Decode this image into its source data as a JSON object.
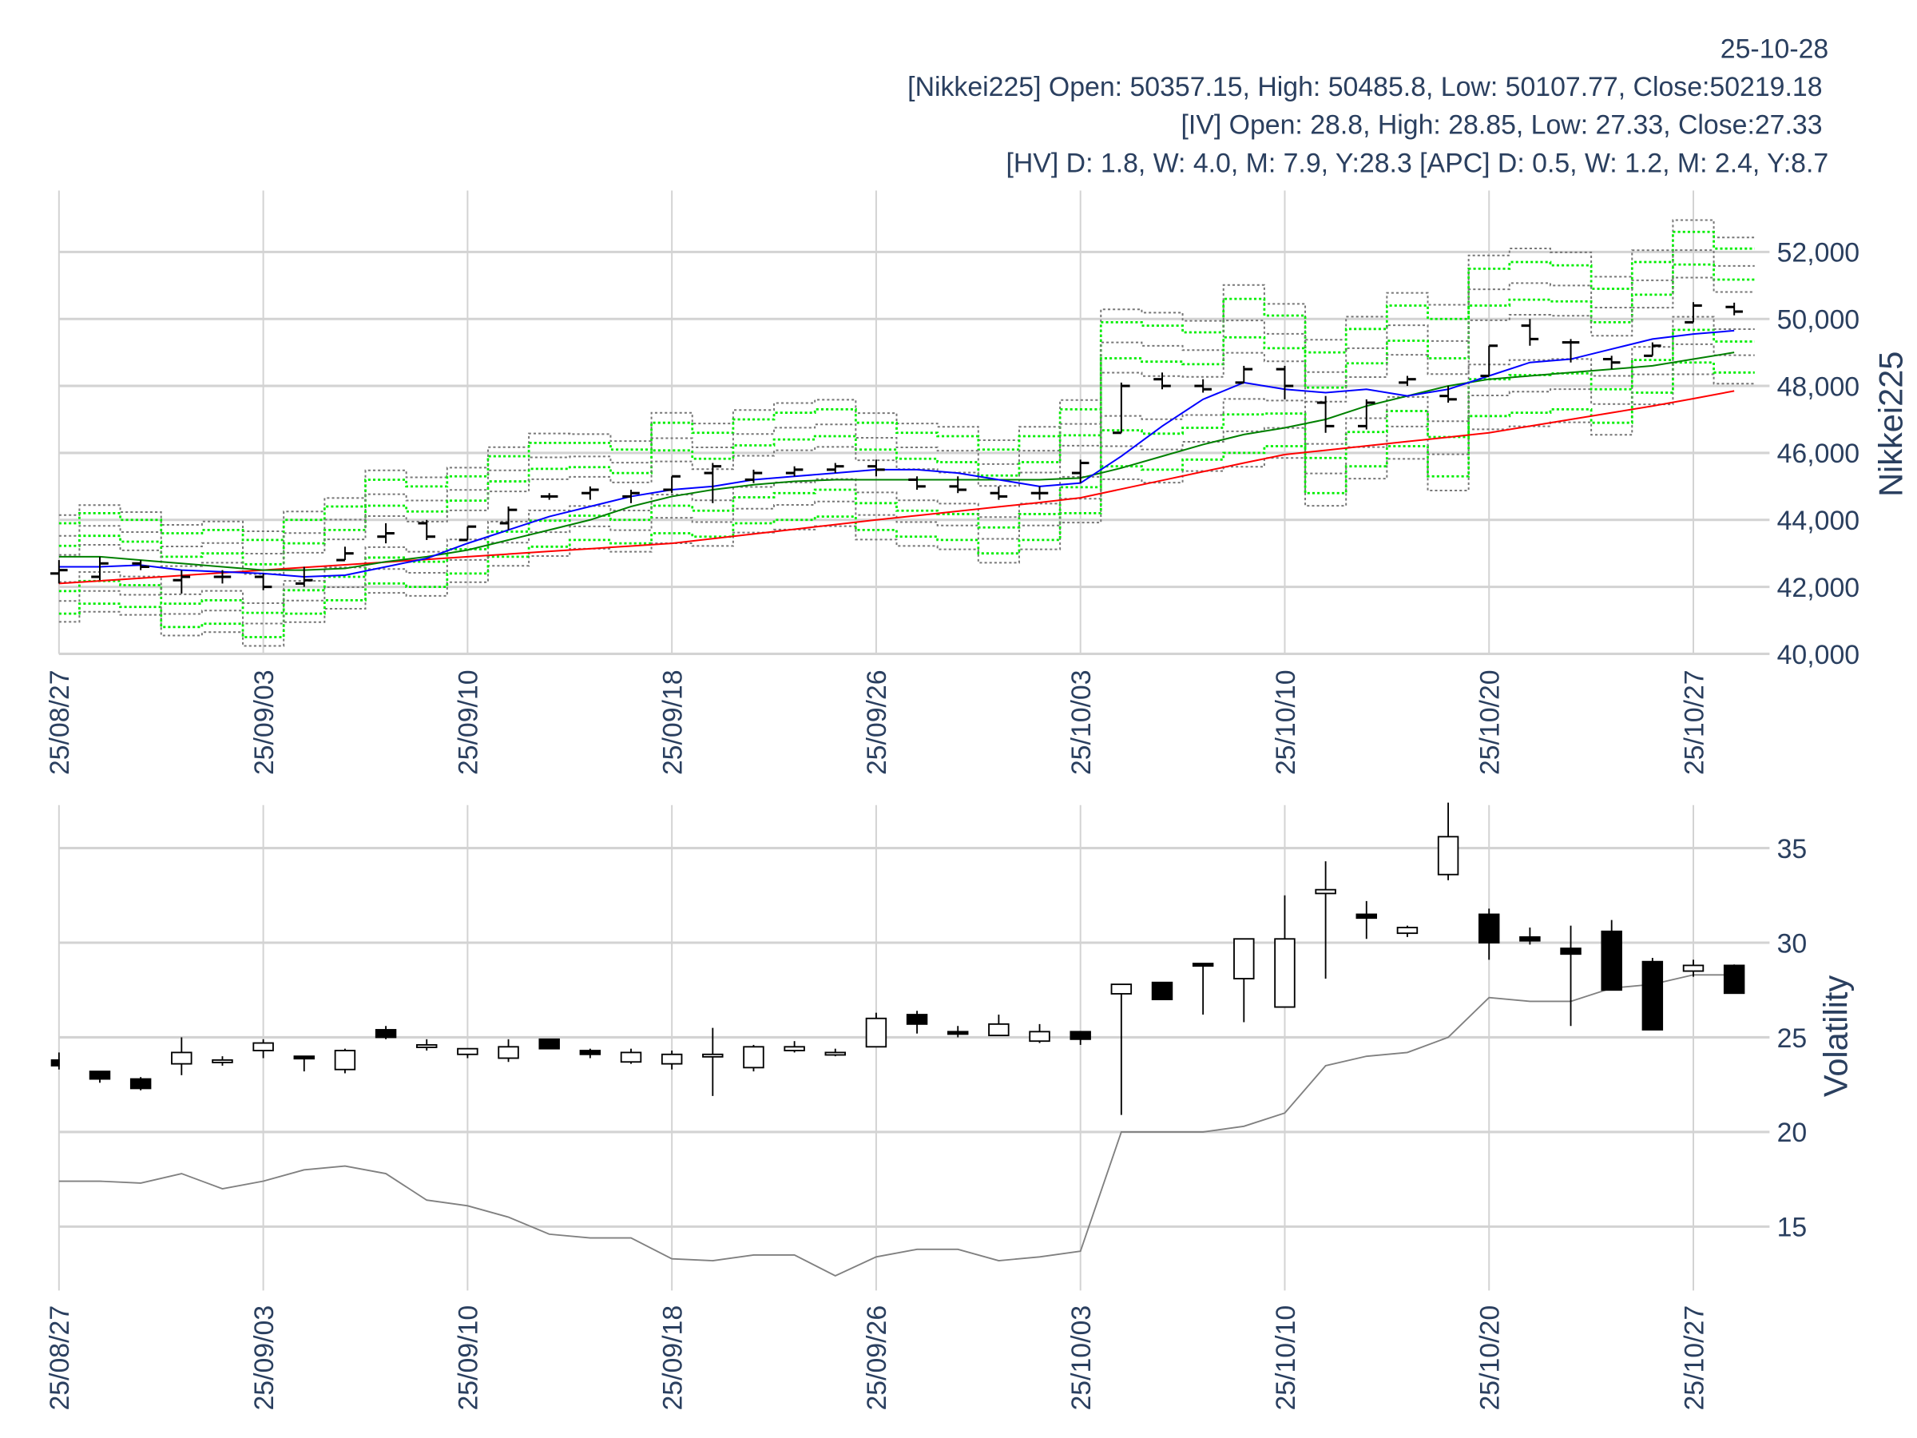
{
  "header": {
    "date": "25-10-28",
    "nikkei_line": "[Nikkei225] Open: 50357.15, High: 50485.8, Low: 50107.77, Close:50219.18",
    "iv_line": "[IV] Open: 28.8, High: 28.85, Low: 27.33, Close:27.33",
    "hv_line": "[HV] D: 1.8, W: 4.0, M: 7.9, Y:28.3 [APC] D: 0.5, W: 1.2, M: 2.4, Y:8.7"
  },
  "chart_data": [
    {
      "type": "ohlc",
      "title": "Nikkei225",
      "ylabel": "Nikkei225",
      "ylim": [
        40000,
        53800
      ],
      "yticks": [
        40000,
        42000,
        44000,
        46000,
        48000,
        50000,
        52000
      ],
      "ytick_labels": [
        "40,000",
        "42,000",
        "44,000",
        "46,000",
        "48,000",
        "50,000",
        "52,000"
      ],
      "xtick_index": [
        0,
        5,
        10,
        15,
        20,
        25,
        30,
        35,
        40
      ],
      "xtick_labels": [
        "25/08/27",
        "25/09/03",
        "25/09/10",
        "25/09/18",
        "25/09/26",
        "25/10/03",
        "25/10/10",
        "25/10/20",
        "25/10/27"
      ],
      "grid": true,
      "ohlc": [
        [
          42400,
          42800,
          42100,
          42500
        ],
        [
          42300,
          42900,
          42200,
          42700
        ],
        [
          42700,
          42800,
          42500,
          42600
        ],
        [
          42200,
          42500,
          41800,
          42300
        ],
        [
          42300,
          42500,
          42100,
          42300
        ],
        [
          42300,
          42400,
          41900,
          42000
        ],
        [
          42100,
          42600,
          42000,
          42200
        ],
        [
          42800,
          43200,
          42800,
          43000
        ],
        [
          43500,
          43900,
          43300,
          43600
        ],
        [
          43900,
          44000,
          43400,
          43500
        ],
        [
          43400,
          43800,
          43400,
          43800
        ],
        [
          43900,
          44400,
          43700,
          44300
        ],
        [
          44700,
          44800,
          44600,
          44700
        ],
        [
          44800,
          45000,
          44600,
          44900
        ],
        [
          44700,
          44900,
          44500,
          44800
        ],
        [
          44900,
          45300,
          44800,
          45300
        ],
        [
          45400,
          45700,
          44500,
          45600
        ],
        [
          45200,
          45500,
          45100,
          45400
        ],
        [
          45400,
          45600,
          45300,
          45500
        ],
        [
          45500,
          45700,
          45400,
          45600
        ],
        [
          45600,
          45800,
          45300,
          45500
        ],
        [
          45200,
          45300,
          44900,
          45000
        ],
        [
          45000,
          45300,
          44800,
          44900
        ],
        [
          44800,
          45000,
          44600,
          44700
        ],
        [
          44800,
          45000,
          44600,
          44800
        ],
        [
          45400,
          45800,
          45100,
          45700
        ],
        [
          46600,
          48100,
          46600,
          48000
        ],
        [
          48200,
          48400,
          47900,
          48000
        ],
        [
          48000,
          48200,
          47800,
          47900
        ],
        [
          48100,
          48600,
          48100,
          48500
        ],
        [
          48500,
          48600,
          47600,
          48000
        ],
        [
          47500,
          47700,
          46600,
          46800
        ],
        [
          46800,
          47600,
          46700,
          47500
        ],
        [
          48100,
          48300,
          48000,
          48200
        ],
        [
          47700,
          48000,
          47500,
          47600
        ],
        [
          48300,
          49200,
          48300,
          49200
        ],
        [
          49800,
          50000,
          49200,
          49400
        ],
        [
          49300,
          49400,
          48700,
          49300
        ],
        [
          48800,
          48900,
          48500,
          48700
        ],
        [
          48900,
          49300,
          48900,
          49200
        ],
        [
          49900,
          50500,
          49900,
          50400
        ],
        [
          50357.15,
          50485.8,
          50107.77,
          50219.18
        ]
      ],
      "ma_short": [
        42600,
        42600,
        42650,
        42500,
        42450,
        42400,
        42300,
        42350,
        42600,
        42850,
        43300,
        43700,
        44100,
        44400,
        44700,
        44900,
        45000,
        45200,
        45300,
        45400,
        45500,
        45500,
        45400,
        45200,
        45000,
        45100,
        45900,
        46800,
        47600,
        48100,
        47900,
        47800,
        47900,
        47700,
        47900,
        48300,
        48700,
        48800,
        49100,
        49400,
        49550,
        49650
      ],
      "ma_mid": [
        42900,
        42900,
        42800,
        42700,
        42600,
        42500,
        42500,
        42550,
        42750,
        42900,
        43100,
        43400,
        43700,
        44000,
        44400,
        44700,
        44900,
        45050,
        45150,
        45200,
        45200,
        45200,
        45200,
        45200,
        45200,
        45250,
        45550,
        45900,
        46250,
        46550,
        46750,
        47000,
        47400,
        47700,
        48000,
        48200,
        48300,
        48400,
        48500,
        48600,
        48800,
        49000
      ],
      "ma_long": [
        42100,
        42180,
        42260,
        42340,
        42420,
        42500,
        42580,
        42660,
        42740,
        42820,
        42900,
        42980,
        43060,
        43140,
        43220,
        43300,
        43440,
        43580,
        43720,
        43860,
        44000,
        44130,
        44260,
        44390,
        44520,
        44660,
        44920,
        45180,
        45440,
        45700,
        45950,
        46080,
        46210,
        46340,
        46470,
        46600,
        46800,
        47000,
        47200,
        47400,
        47620,
        47850
      ],
      "band_upper": [
        43900,
        44200,
        44000,
        43600,
        43700,
        43400,
        44000,
        44400,
        45200,
        45000,
        45300,
        45900,
        46300,
        46300,
        46100,
        46900,
        46600,
        47000,
        47200,
        47300,
        46900,
        46600,
        46500,
        46100,
        46500,
        47300,
        49900,
        49800,
        49600,
        50600,
        50100,
        49000,
        49700,
        50400,
        50000,
        51500,
        51700,
        51600,
        50900,
        51700,
        52600,
        52100
      ],
      "band_lower": [
        41200,
        41500,
        41400,
        40800,
        40900,
        40500,
        41200,
        41600,
        42100,
        42000,
        42400,
        42900,
        43200,
        43400,
        43300,
        43600,
        43500,
        43900,
        44000,
        44100,
        43700,
        43500,
        43400,
        43000,
        43400,
        44200,
        45600,
        45500,
        45800,
        46000,
        46200,
        44800,
        45600,
        46200,
        45300,
        47100,
        47200,
        47300,
        46900,
        47800,
        48700,
        48400
      ],
      "band_levels": [
        1.18,
        1.0,
        0.72,
        0.5,
        0.3
      ],
      "colors": {
        "bar": "#000000",
        "ma_short": "#0000ff",
        "ma_mid": "#008000",
        "ma_long": "#ff0000",
        "band_green": "#00ee00",
        "band_gray": "#777777"
      }
    },
    {
      "type": "candlestick",
      "title": "Volatility",
      "ylabel": "Volatility",
      "ylim": [
        11.6,
        37.8
      ],
      "yticks": [
        15,
        20,
        25,
        30,
        35
      ],
      "ytick_labels": [
        "15",
        "20",
        "25",
        "30",
        "35"
      ],
      "xtick_index": [
        0,
        5,
        10,
        15,
        20,
        25,
        30,
        35,
        40
      ],
      "xtick_labels": [
        "25/08/27",
        "25/09/03",
        "25/09/10",
        "25/09/18",
        "25/09/26",
        "25/10/03",
        "25/10/10",
        "25/10/20",
        "25/10/27"
      ],
      "grid": true,
      "iv_ohlc": [
        [
          23.8,
          24.2,
          23.3,
          23.5
        ],
        [
          23.2,
          23.2,
          22.6,
          22.8
        ],
        [
          22.8,
          22.9,
          22.2,
          22.3
        ],
        [
          23.6,
          25,
          23,
          24.2
        ],
        [
          23.7,
          24,
          23.5,
          23.8
        ],
        [
          24.3,
          24.9,
          23.9,
          24.7
        ],
        [
          24,
          24,
          23.2,
          23.9
        ],
        [
          23.3,
          24.4,
          23.1,
          24.3
        ],
        [
          25.4,
          25.6,
          24.9,
          25
        ],
        [
          24.6,
          24.9,
          24.3,
          24.6
        ],
        [
          24.1,
          24.4,
          23.9,
          24.4
        ],
        [
          23.9,
          24.9,
          23.7,
          24.5
        ],
        [
          24.9,
          24.9,
          24.4,
          24.4
        ],
        [
          24.3,
          24.4,
          23.9,
          24.1
        ],
        [
          23.7,
          24.4,
          23.6,
          24.2
        ],
        [
          23.6,
          24.3,
          23.3,
          24.1
        ],
        [
          24,
          25.5,
          21.9,
          24.1
        ],
        [
          23.4,
          24.6,
          23.2,
          24.5
        ],
        [
          24.3,
          24.8,
          24.2,
          24.5
        ],
        [
          24.1,
          24.4,
          24,
          24.2
        ],
        [
          24.5,
          26.3,
          24.5,
          26
        ],
        [
          26.2,
          26.4,
          25.2,
          25.7
        ],
        [
          25.3,
          25.6,
          25,
          25.2
        ],
        [
          25.1,
          26.2,
          25.1,
          25.7
        ],
        [
          24.8,
          25.7,
          24.7,
          25.3
        ],
        [
          25.3,
          25.3,
          24.6,
          24.9
        ],
        [
          27.3,
          27.8,
          20.9,
          27.8
        ],
        [
          27.9,
          27.9,
          27,
          27
        ],
        [
          28.9,
          28.9,
          26.2,
          28.8
        ],
        [
          28.1,
          30.2,
          25.8,
          30.2
        ],
        [
          26.6,
          32.5,
          26.6,
          30.2
        ],
        [
          32.6,
          34.3,
          28.1,
          32.8
        ],
        [
          31.5,
          32.2,
          30.2,
          31.3
        ],
        [
          30.5,
          30.9,
          30.3,
          30.8
        ],
        [
          33.6,
          37.4,
          33.3,
          35.6
        ],
        [
          31.5,
          31.8,
          29.1,
          30
        ],
        [
          30.3,
          30.8,
          29.9,
          30.1
        ],
        [
          29.7,
          30.9,
          25.6,
          29.4
        ],
        [
          30.6,
          31.2,
          27.5,
          27.5
        ],
        [
          29,
          29.2,
          25.4,
          25.4
        ],
        [
          28.5,
          29.1,
          28.2,
          28.8
        ],
        [
          28.8,
          28.85,
          27.33,
          27.33
        ]
      ],
      "hv": [
        17.4,
        17.4,
        17.3,
        17.8,
        17,
        17.4,
        18,
        18.2,
        17.8,
        16.4,
        16.1,
        15.5,
        14.6,
        14.4,
        14.4,
        13.3,
        13.2,
        13.5,
        13.5,
        12.4,
        13.4,
        13.8,
        13.8,
        13.2,
        13.4,
        13.7,
        20,
        20,
        20,
        20.3,
        21,
        23.5,
        24,
        24.2,
        25,
        27.1,
        26.9,
        26.9,
        27.6,
        27.8,
        28.3,
        28.3
      ],
      "colors": {
        "up": "#ffffff",
        "down": "#000000",
        "hv": "#808080"
      }
    }
  ]
}
